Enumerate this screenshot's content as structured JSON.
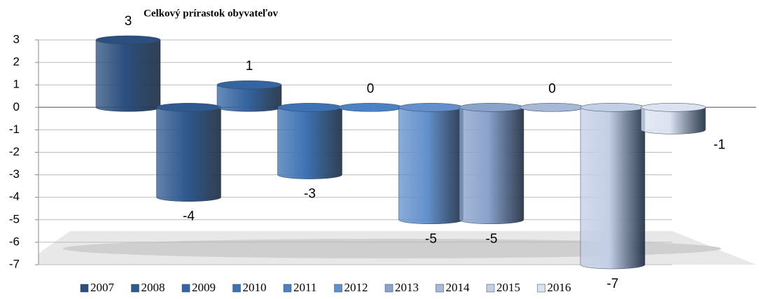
{
  "chart_data": {
    "type": "bar",
    "title": "Celkový prírastok obyvateľov",
    "categories": [
      "2007",
      "2008",
      "2009",
      "2010",
      "2011",
      "2012",
      "2013",
      "2014",
      "2015",
      "2016"
    ],
    "values": [
      3,
      -4,
      1,
      -3,
      0,
      -5,
      -5,
      0,
      -7,
      -1
    ],
    "colors": [
      "#2b4f7e",
      "#2f5a8f",
      "#3565a0",
      "#3d72b3",
      "#4a82c4",
      "#6390cc",
      "#8aa3cb",
      "#a8b8d8",
      "#c3cfe6",
      "#dbe3f1"
    ],
    "ylim": [
      -7,
      3
    ],
    "yticks": [
      -7,
      -6,
      -5,
      -4,
      -3,
      -2,
      -1,
      0,
      1,
      2,
      3
    ],
    "grid": true,
    "legend": "bottom"
  }
}
